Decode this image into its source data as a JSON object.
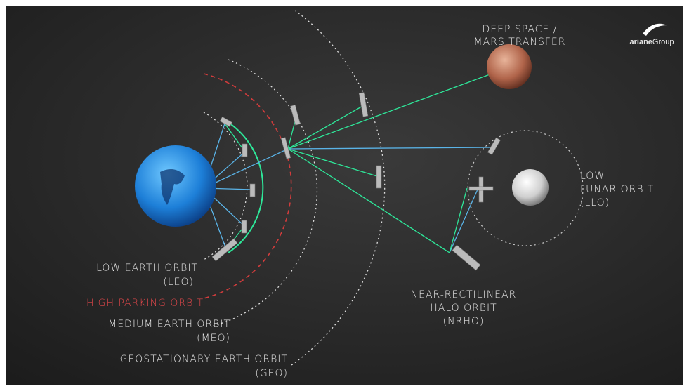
{
  "logo": {
    "brand": "ariane",
    "suffix": "Group"
  },
  "labels": {
    "deep_space": {
      "lines": [
        "DEEP SPACE /",
        "MARS TRANSFER"
      ]
    },
    "llo": {
      "lines": [
        "LOW",
        "LUNAR ORBIT",
        "(LLO)"
      ]
    },
    "leo": {
      "lines": [
        "LOW EARTH ORBIT",
        "(LEO)"
      ]
    },
    "high_parking": {
      "lines": [
        "HIGH PARKING ORBIT"
      ]
    },
    "meo": {
      "lines": [
        "MEDIUM EARTH ORBIT",
        "(MEO)"
      ]
    },
    "geo": {
      "lines": [
        "GEOSTATIONARY EARTH ORBIT",
        "(GEO)"
      ]
    },
    "nrho": {
      "lines": [
        "NEAR-RECTILINEAR",
        "HALO ORBIT",
        "(NRHO)"
      ]
    }
  }
}
